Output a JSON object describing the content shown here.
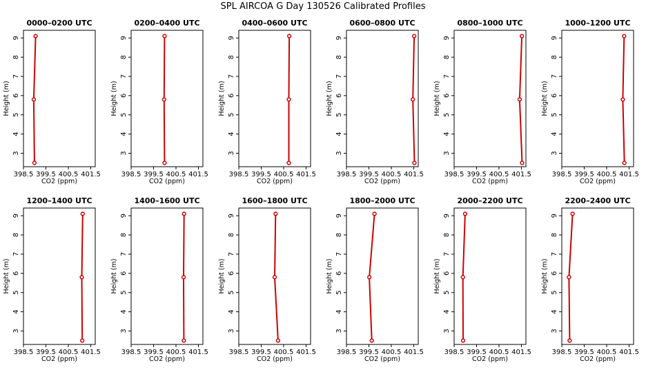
{
  "title": "SPL AIRCOA G  Day 130526  Calibrated Profiles",
  "colors": {
    "profile": "#cc0000",
    "axis": "#000000",
    "background": "#ffffff"
  },
  "chart_data": [
    {
      "type": "line",
      "title": "0000–0200 UTC",
      "xlabel": "CO2 (ppm)",
      "ylabel": "Height (m)",
      "xlim": [
        398.5,
        401.7
      ],
      "ylim": [
        2.3,
        9.4
      ],
      "xticks": [
        "398.5",
        "399.5",
        "400.5",
        "401.5"
      ],
      "yticks": [
        "3",
        "4",
        "5",
        "6",
        "7",
        "8",
        "9"
      ],
      "series": [
        {
          "x": [
            399.04,
            398.96,
            398.99
          ],
          "y": [
            9.1,
            5.8,
            2.5
          ]
        }
      ]
    },
    {
      "type": "line",
      "title": "0200–0400 UTC",
      "xlabel": "CO2 (ppm)",
      "ylabel": "Height (m)",
      "xlim": [
        398.5,
        401.7
      ],
      "ylim": [
        2.3,
        9.4
      ],
      "xticks": [
        "398.5",
        "399.5",
        "400.5",
        "401.5"
      ],
      "yticks": [
        "3",
        "4",
        "5",
        "6",
        "7",
        "8",
        "9"
      ],
      "series": [
        {
          "x": [
            399.99,
            399.97,
            399.99
          ],
          "y": [
            9.1,
            5.8,
            2.5
          ]
        }
      ]
    },
    {
      "type": "line",
      "title": "0400–0600 UTC",
      "xlabel": "CO2 (ppm)",
      "ylabel": "Height (m)",
      "xlim": [
        398.5,
        401.7
      ],
      "ylim": [
        2.3,
        9.4
      ],
      "xticks": [
        "398.5",
        "399.5",
        "400.5",
        "401.5"
      ],
      "yticks": [
        "3",
        "4",
        "5",
        "6",
        "7",
        "8",
        "9"
      ],
      "series": [
        {
          "x": [
            400.75,
            400.73,
            400.73
          ],
          "y": [
            9.1,
            5.8,
            2.5
          ]
        }
      ]
    },
    {
      "type": "line",
      "title": "0600–0800 UTC",
      "xlabel": "CO2 (ppm)",
      "ylabel": "Height (m)",
      "xlim": [
        398.5,
        401.7
      ],
      "ylim": [
        2.3,
        9.4
      ],
      "xticks": [
        "398.5",
        "399.5",
        "400.5",
        "401.5"
      ],
      "yticks": [
        "3",
        "4",
        "5",
        "6",
        "7",
        "8",
        "9"
      ],
      "series": [
        {
          "x": [
            401.52,
            401.46,
            401.53
          ],
          "y": [
            9.1,
            5.8,
            2.5
          ]
        }
      ]
    },
    {
      "type": "line",
      "title": "0800–1000 UTC",
      "xlabel": "CO2 (ppm)",
      "ylabel": "Height (m)",
      "xlim": [
        398.5,
        401.7
      ],
      "ylim": [
        2.3,
        9.4
      ],
      "xticks": [
        "398.5",
        "399.5",
        "400.5",
        "401.5"
      ],
      "yticks": [
        "3",
        "4",
        "5",
        "6",
        "7",
        "8",
        "9"
      ],
      "series": [
        {
          "x": [
            401.52,
            401.42,
            401.53
          ],
          "y": [
            9.1,
            5.8,
            2.5
          ]
        }
      ]
    },
    {
      "type": "line",
      "title": "1000–1200 UTC",
      "xlabel": "CO2 (ppm)",
      "ylabel": "Height (m)",
      "xlim": [
        398.5,
        401.7
      ],
      "ylim": [
        2.3,
        9.4
      ],
      "xticks": [
        "398.5",
        "399.5",
        "400.5",
        "401.5"
      ],
      "yticks": [
        "3",
        "4",
        "5",
        "6",
        "7",
        "8",
        "9"
      ],
      "series": [
        {
          "x": [
            401.28,
            401.22,
            401.29
          ],
          "y": [
            9.1,
            5.8,
            2.5
          ]
        }
      ]
    },
    {
      "type": "line",
      "title": "1200–1400 UTC",
      "xlabel": "CO2 (ppm)",
      "ylabel": "Height (m)",
      "xlim": [
        398.5,
        401.7
      ],
      "ylim": [
        2.3,
        9.4
      ],
      "xticks": [
        "398.5",
        "399.5",
        "400.5",
        "401.5"
      ],
      "yticks": [
        "3",
        "4",
        "5",
        "6",
        "7",
        "8",
        "9"
      ],
      "series": [
        {
          "x": [
            401.14,
            401.1,
            401.12
          ],
          "y": [
            9.1,
            5.8,
            2.5
          ]
        }
      ]
    },
    {
      "type": "line",
      "title": "1400–1600 UTC",
      "xlabel": "CO2 (ppm)",
      "ylabel": "Height (m)",
      "xlim": [
        398.5,
        401.7
      ],
      "ylim": [
        2.3,
        9.4
      ],
      "xticks": [
        "398.5",
        "399.5",
        "400.5",
        "401.5"
      ],
      "yticks": [
        "3",
        "4",
        "5",
        "6",
        "7",
        "8",
        "9"
      ],
      "series": [
        {
          "x": [
            400.86,
            400.84,
            400.85
          ],
          "y": [
            9.1,
            5.8,
            2.5
          ]
        }
      ]
    },
    {
      "type": "line",
      "title": "1600–1800 UTC",
      "xlabel": "CO2 (ppm)",
      "ylabel": "Height (m)",
      "xlim": [
        398.5,
        401.7
      ],
      "ylim": [
        2.3,
        9.4
      ],
      "xticks": [
        "398.5",
        "399.5",
        "400.5",
        "401.5"
      ],
      "yticks": [
        "3",
        "4",
        "5",
        "6",
        "7",
        "8",
        "9"
      ],
      "series": [
        {
          "x": [
            400.14,
            400.1,
            400.25
          ],
          "y": [
            9.1,
            5.8,
            2.5
          ]
        }
      ]
    },
    {
      "type": "line",
      "title": "1800–2000 UTC",
      "xlabel": "CO2 (ppm)",
      "ylabel": "Height (m)",
      "xlim": [
        398.5,
        401.7
      ],
      "ylim": [
        2.3,
        9.4
      ],
      "xticks": [
        "398.5",
        "399.5",
        "400.5",
        "401.5"
      ],
      "yticks": [
        "3",
        "4",
        "5",
        "6",
        "7",
        "8",
        "9"
      ],
      "series": [
        {
          "x": [
            399.75,
            399.52,
            399.63
          ],
          "y": [
            9.1,
            5.8,
            2.5
          ]
        }
      ]
    },
    {
      "type": "line",
      "title": "2000–2200 UTC",
      "xlabel": "CO2 (ppm)",
      "ylabel": "Height (m)",
      "xlim": [
        398.5,
        401.7
      ],
      "ylim": [
        2.3,
        9.4
      ],
      "xticks": [
        "398.5",
        "399.5",
        "400.5",
        "401.5"
      ],
      "yticks": [
        "3",
        "4",
        "5",
        "6",
        "7",
        "8",
        "9"
      ],
      "series": [
        {
          "x": [
            398.99,
            398.89,
            398.9
          ],
          "y": [
            9.1,
            5.8,
            2.5
          ]
        }
      ]
    },
    {
      "type": "line",
      "title": "2200–2400 UTC",
      "xlabel": "CO2 (ppm)",
      "ylabel": "Height (m)",
      "xlim": [
        398.5,
        401.7
      ],
      "ylim": [
        2.3,
        9.4
      ],
      "xticks": [
        "398.5",
        "399.5",
        "400.5",
        "401.5"
      ],
      "yticks": [
        "3",
        "4",
        "5",
        "6",
        "7",
        "8",
        "9"
      ],
      "series": [
        {
          "x": [
            398.98,
            398.82,
            398.85
          ],
          "y": [
            9.1,
            5.8,
            2.5
          ]
        }
      ]
    }
  ]
}
